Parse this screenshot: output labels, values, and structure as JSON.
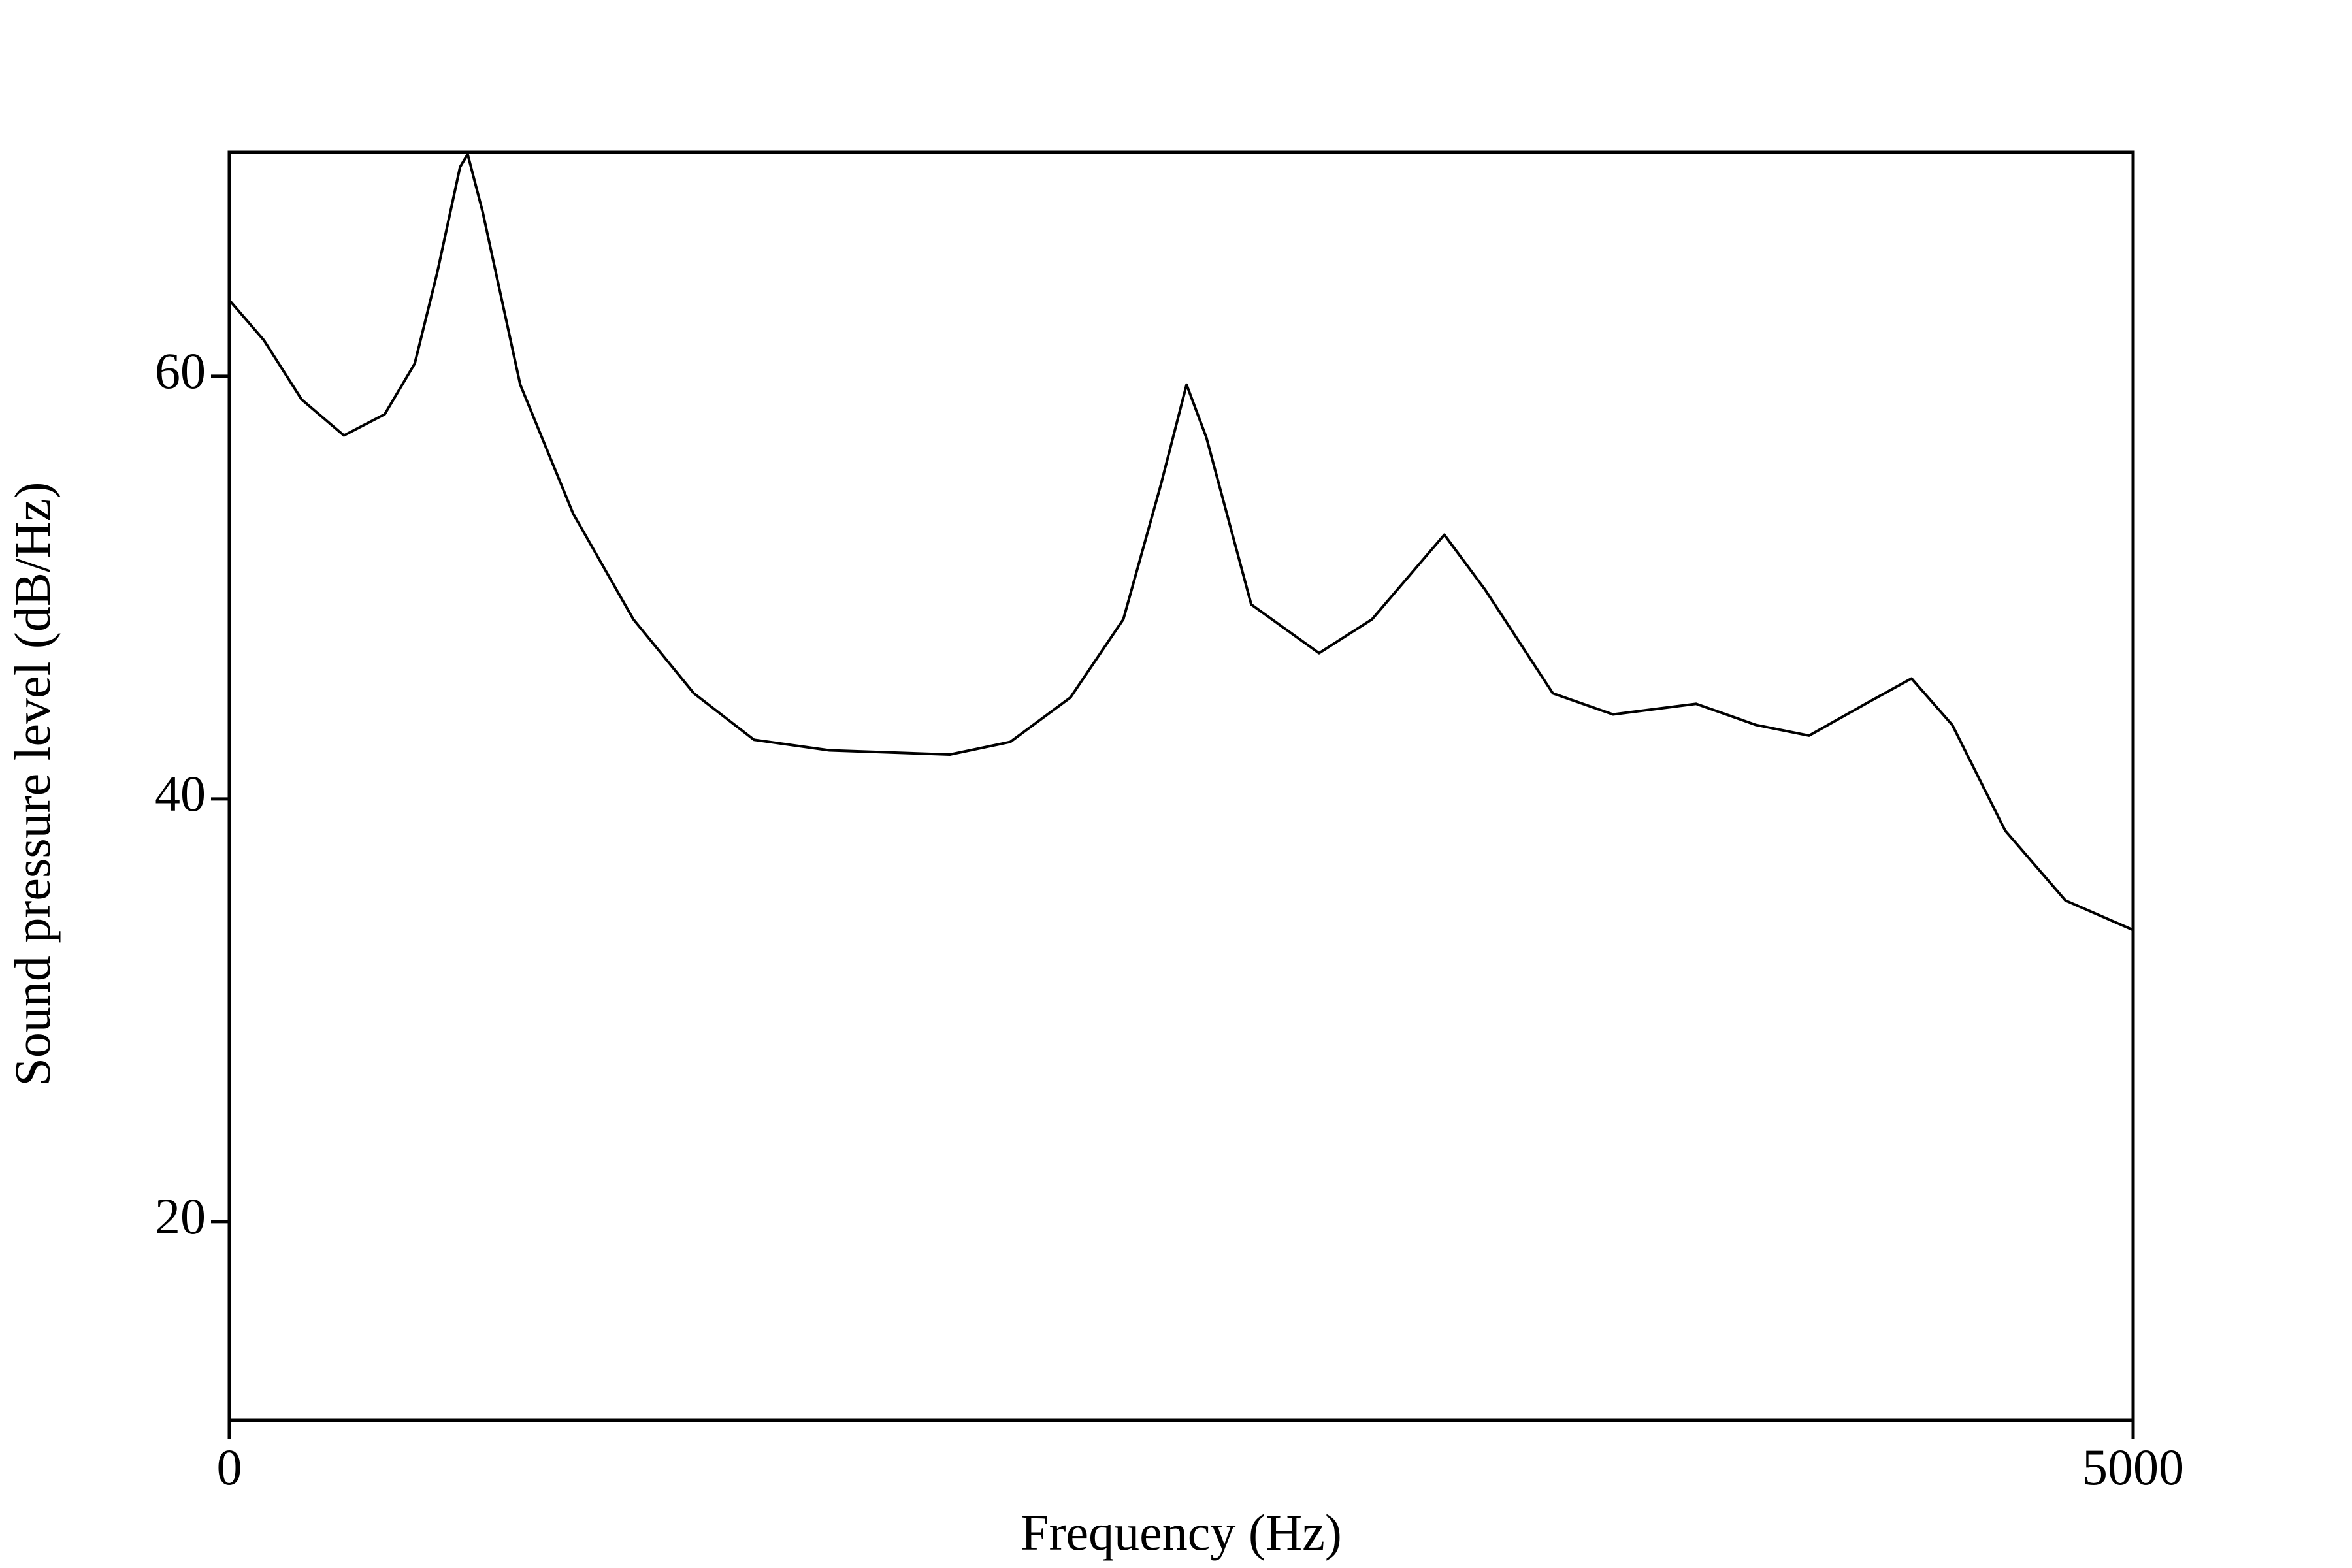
{
  "chart_data": {
    "type": "line",
    "x_label": "Frequency (Hz)",
    "y_label": "Sound pressure level (dB/Hz)",
    "x": [
      0,
      91,
      190,
      301,
      408,
      487,
      546,
      606,
      626,
      665,
      764,
      903,
      1061,
      1220,
      1378,
      1576,
      1892,
      2051,
      2209,
      2348,
      2447,
      2514,
      2566,
      2684,
      2862,
      3001,
      3191,
      3298,
      3476,
      3634,
      3852,
      4010,
      4149,
      4307,
      4418,
      4525,
      4664,
      4822,
      5000
    ],
    "values": [
      63.6,
      61.7,
      58.9,
      57.2,
      58.2,
      60.6,
      64.9,
      69.9,
      70.5,
      67.8,
      59.6,
      53.5,
      48.5,
      45.0,
      42.8,
      42.3,
      42.1,
      42.7,
      44.8,
      48.5,
      54.9,
      59.6,
      57.1,
      49.2,
      46.9,
      48.5,
      52.5,
      49.9,
      45.0,
      44.0,
      44.5,
      43.5,
      43.0,
      44.6,
      45.7,
      43.5,
      38.5,
      35.2,
      33.8
    ],
    "color": "#000000",
    "xlim": [
      0,
      5000
    ],
    "xticks": [
      0,
      5000
    ],
    "ylim": [
      10.6,
      70.6
    ],
    "yticks": [
      20,
      40,
      60
    ],
    "grid": false
  }
}
